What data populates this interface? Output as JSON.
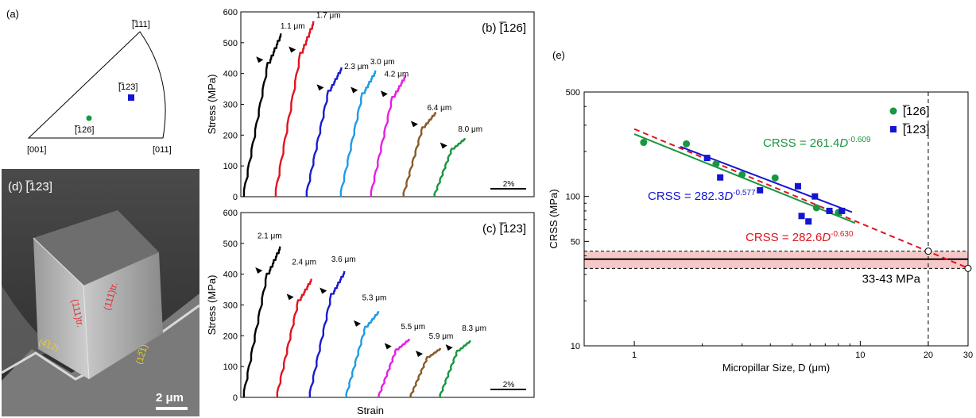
{
  "panel_labels": {
    "a": "(a)",
    "b": "(b) [̅1​26]",
    "c": "(c) [̅1​23]",
    "d": "(d) [̅1​23]",
    "e": "(e)"
  },
  "ipf": {
    "corners": {
      "top": "[̅1​11]",
      "left": "[001]",
      "right": "[011]"
    },
    "points": [
      {
        "label": "[̅1​26]",
        "color": "#1a9641",
        "marker": "circle"
      },
      {
        "label": "[̅1​23]",
        "color": "#1414d2",
        "marker": "square"
      }
    ]
  },
  "sem": {
    "title": "(d) [̅1​23]",
    "traces": [
      "(111)tr.",
      "(111)tr."
    ],
    "faces": [
      "(4̅1​2)",
      "(12̅1​)"
    ],
    "scale": "2 μm",
    "trace_color": "#e0303a",
    "face_color": "#e8d020"
  },
  "chart_data": [
    {
      "type": "line",
      "panel": "(b) [̅1​26]",
      "ylabel": "Stress (MPa)",
      "xlabel": "",
      "ylim": [
        0,
        600
      ],
      "yticks": [
        0,
        100,
        200,
        300,
        400,
        500,
        600
      ],
      "scale_bar": "2%",
      "series": [
        {
          "name": "1.1 μm",
          "color": "#000000",
          "max": 530
        },
        {
          "name": "1.7 μm",
          "color": "#e0141e",
          "max": 570
        },
        {
          "name": "2.3 μm",
          "color": "#1a1ad2",
          "max": 420
        },
        {
          "name": "3.0 μm",
          "color": "#1e9be6",
          "max": 410
        },
        {
          "name": "4.2 μm",
          "color": "#e61ee6",
          "max": 395
        },
        {
          "name": "6.4 μm",
          "color": "#8a5a28",
          "max": 275
        },
        {
          "name": "8.0 μm",
          "color": "#1a9641",
          "max": 190
        }
      ]
    },
    {
      "type": "line",
      "panel": "(c) [̅1​23]",
      "ylabel": "Stress (MPa)",
      "xlabel": "Strain",
      "ylim": [
        0,
        600
      ],
      "yticks": [
        0,
        100,
        200,
        300,
        400,
        500,
        600
      ],
      "scale_bar": "2%",
      "series": [
        {
          "name": "2.1 μm",
          "color": "#000000",
          "max": 490
        },
        {
          "name": "2.4 μm",
          "color": "#e0141e",
          "max": 385
        },
        {
          "name": "3.6 μm",
          "color": "#1a1ad2",
          "max": 410
        },
        {
          "name": "5.3 μm",
          "color": "#1e9be6",
          "max": 280
        },
        {
          "name": "5.5 μm",
          "color": "#e61ee6",
          "max": 190
        },
        {
          "name": "5.9 μm",
          "color": "#8a5a28",
          "max": 160
        },
        {
          "name": "8.3 μm",
          "color": "#1a9641",
          "max": 185
        }
      ]
    },
    {
      "type": "scatter",
      "panel": "(e)",
      "xlabel": "Micropillar Size, D (μm)",
      "ylabel": "CRSS (MPa)",
      "xscale": "log",
      "yscale": "log",
      "xlim": [
        0.6,
        30
      ],
      "ylim": [
        10,
        500
      ],
      "xticks": [
        1,
        10,
        20,
        30
      ],
      "yticks": [
        10,
        50,
        100,
        500
      ],
      "legend": [
        "[̅1​26]",
        "[̅1​23]"
      ],
      "legend_position": "top-right",
      "series": [
        {
          "name": "[̅1​26]",
          "color": "#1a9641",
          "marker": "circle",
          "x": [
            1.1,
            1.7,
            2.3,
            3.0,
            4.2,
            6.4,
            8.0
          ],
          "y": [
            230,
            225,
            165,
            140,
            133,
            84,
            78
          ]
        },
        {
          "name": "[̅1​23]",
          "color": "#1414d2",
          "marker": "square",
          "x": [
            2.1,
            2.4,
            3.6,
            5.3,
            5.5,
            5.9,
            6.3,
            7.3,
            8.3
          ],
          "y": [
            181,
            134,
            110,
            117,
            74,
            68,
            100,
            80,
            80
          ]
        }
      ],
      "fits": [
        {
          "label_prefix": "CRSS = 261.4",
          "var": "D",
          "exp": "-0.609",
          "a": 261.4,
          "b": -0.609,
          "color": "#1a9641",
          "dash": false,
          "from": 1.0,
          "to": 9.5
        },
        {
          "label_prefix": "CRSS = 282.3",
          "var": "D",
          "exp": "-0.577",
          "a": 282.3,
          "b": -0.577,
          "color": "#1414d2",
          "dash": false,
          "from": 1.6,
          "to": 9.2
        },
        {
          "label_prefix": "CRSS = 282.6",
          "var": "D",
          "exp": "-0.630",
          "a": 282.6,
          "b": -0.63,
          "color": "#e0141e",
          "dash": true,
          "from": 1.0,
          "to": 30
        }
      ],
      "band": {
        "label": "33-43 MPa",
        "low": 33,
        "high": 43,
        "center": 38
      },
      "vline": 20,
      "open_points": [
        {
          "x": 20,
          "y": 43
        },
        {
          "x": 30,
          "y": 33
        }
      ]
    }
  ]
}
